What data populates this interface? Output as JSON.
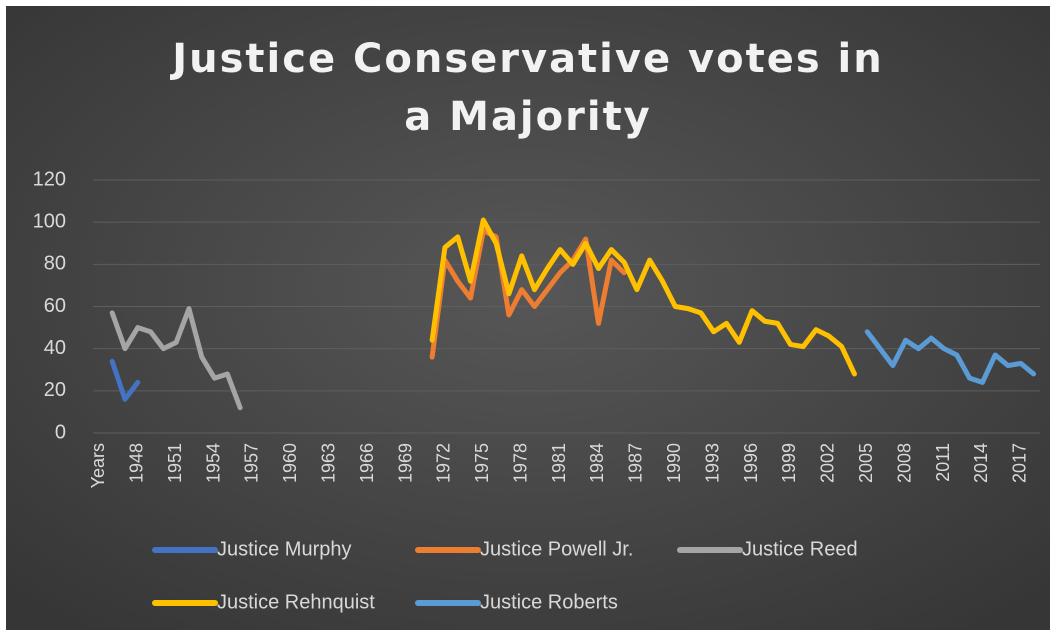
{
  "chart_data": {
    "type": "line",
    "title": "Justice Conservative votes in a Majority",
    "categories": [
      "Years",
      null,
      null,
      "1948",
      null,
      null,
      "1951",
      null,
      null,
      "1954",
      null,
      null,
      "1957",
      null,
      null,
      "1960",
      null,
      null,
      "1963",
      null,
      null,
      "1966",
      null,
      null,
      "1969",
      null,
      null,
      "1972",
      null,
      null,
      "1975",
      null,
      null,
      "1978",
      null,
      null,
      "1981",
      null,
      null,
      "1984",
      null,
      null,
      "1987",
      null,
      null,
      "1990",
      null,
      null,
      "1993",
      null,
      null,
      "1996",
      null,
      null,
      "1999",
      null,
      null,
      "2002",
      null,
      null,
      "2005",
      null,
      null,
      "2008",
      null,
      null,
      "2011",
      null,
      null,
      "2014",
      null,
      null,
      "2017",
      null
    ],
    "series": [
      {
        "name": "Justice Murphy",
        "color": "#4472c4",
        "values": [
          null,
          34,
          16,
          24,
          null,
          null,
          null,
          null,
          null,
          null,
          null,
          null,
          null,
          null,
          null,
          null,
          null,
          null,
          null,
          null,
          null,
          null,
          null,
          null,
          null,
          null,
          null,
          null,
          null,
          null,
          null,
          null,
          null,
          null,
          null,
          null,
          null,
          null,
          null,
          null,
          null,
          null,
          null,
          null,
          null,
          null,
          null,
          null,
          null,
          null,
          null,
          null,
          null,
          null,
          null,
          null,
          null,
          null,
          null,
          null,
          null,
          null,
          null,
          null,
          null,
          null,
          null,
          null,
          null,
          null,
          null,
          null,
          null,
          null
        ]
      },
      {
        "name": "Justice Powell Jr.",
        "color": "#ed7d31",
        "values": [
          null,
          null,
          null,
          null,
          null,
          null,
          null,
          null,
          null,
          null,
          null,
          null,
          null,
          null,
          null,
          null,
          null,
          null,
          null,
          null,
          null,
          null,
          null,
          null,
          null,
          null,
          36,
          82,
          72,
          64,
          96,
          93,
          56,
          68,
          60,
          68,
          76,
          82,
          92,
          52,
          82,
          76,
          null,
          null,
          null,
          null,
          null,
          null,
          null,
          null,
          null,
          null,
          null,
          null,
          null,
          null,
          null,
          null,
          null,
          null,
          null,
          null,
          null,
          null,
          null,
          null,
          null,
          null,
          null,
          null,
          null,
          null,
          null,
          null
        ]
      },
      {
        "name": "Justice Reed",
        "color": "#a5a5a5",
        "values": [
          null,
          57,
          40,
          50,
          48,
          40,
          43,
          59,
          36,
          26,
          28,
          12,
          null,
          null,
          null,
          null,
          null,
          null,
          null,
          null,
          null,
          null,
          null,
          null,
          null,
          null,
          null,
          null,
          null,
          null,
          null,
          null,
          null,
          null,
          null,
          null,
          null,
          null,
          null,
          null,
          null,
          null,
          null,
          null,
          null,
          null,
          null,
          null,
          null,
          null,
          null,
          null,
          null,
          null,
          null,
          null,
          null,
          null,
          null,
          null,
          null,
          null,
          null,
          null,
          null,
          null,
          null,
          null,
          null,
          null,
          null,
          null,
          null,
          null
        ]
      },
      {
        "name": "Justice Rehnquist",
        "color": "#ffc000",
        "values": [
          null,
          null,
          null,
          null,
          null,
          null,
          null,
          null,
          null,
          null,
          null,
          null,
          null,
          null,
          null,
          null,
          null,
          null,
          null,
          null,
          null,
          null,
          null,
          null,
          null,
          null,
          44,
          88,
          93,
          72,
          101,
          90,
          66,
          84,
          68,
          78,
          87,
          80,
          90,
          78,
          87,
          81,
          68,
          82,
          72,
          60,
          59,
          57,
          48,
          52,
          43,
          58,
          53,
          52,
          42,
          41,
          49,
          46,
          41,
          28,
          null,
          null,
          null,
          null,
          null,
          null,
          null,
          null,
          null,
          null,
          null,
          null,
          null,
          null
        ]
      },
      {
        "name": "Justice Roberts",
        "color": "#5b9bd5",
        "values": [
          null,
          null,
          null,
          null,
          null,
          null,
          null,
          null,
          null,
          null,
          null,
          null,
          null,
          null,
          null,
          null,
          null,
          null,
          null,
          null,
          null,
          null,
          null,
          null,
          null,
          null,
          null,
          null,
          null,
          null,
          null,
          null,
          null,
          null,
          null,
          null,
          null,
          null,
          null,
          null,
          null,
          null,
          null,
          null,
          null,
          null,
          null,
          null,
          null,
          null,
          null,
          null,
          null,
          null,
          null,
          null,
          null,
          null,
          null,
          null,
          48,
          40,
          32,
          44,
          40,
          45,
          40,
          37,
          26,
          24,
          37,
          32,
          33,
          28
        ]
      }
    ],
    "ylim": [
      0,
      120
    ],
    "yticks": [
      0,
      20,
      40,
      60,
      80,
      100,
      120
    ],
    "grid": true,
    "legend": "bottom"
  }
}
